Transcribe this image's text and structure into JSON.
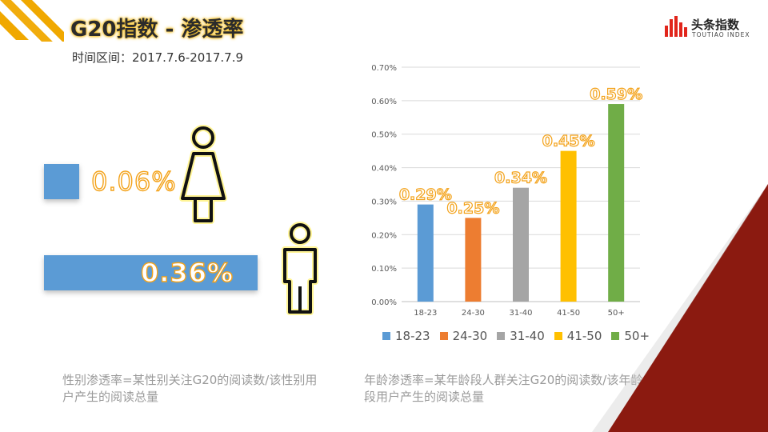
{
  "header": {
    "title": "G20指数 - 渗透率",
    "period": "时间区间：2017.7.6-2017.7.9"
  },
  "brand": {
    "name": "头条指数",
    "sub": "TOUTIAO INDEX",
    "icon": "bar-logo-icon"
  },
  "gender": {
    "female": {
      "value": "0.06%",
      "rate": 0.06,
      "icon": "female-icon"
    },
    "male": {
      "value": "0.36%",
      "rate": 0.36,
      "icon": "male-icon"
    },
    "bar_color": "#5b9bd5",
    "note": "性别渗透率=某性别关注G20的阅读数/该性别用户产生的阅读总量"
  },
  "age_note": "年龄渗透率=某年龄段人群关注G20的阅读数/该年龄段用户产生的阅读总量",
  "chart_data": {
    "type": "bar",
    "categories": [
      "18-23",
      "24-30",
      "31-40",
      "41-50",
      "50+"
    ],
    "values": [
      0.29,
      0.25,
      0.34,
      0.45,
      0.59
    ],
    "value_labels": [
      "0.29%",
      "0.25%",
      "0.34%",
      "0.45%",
      "0.59%"
    ],
    "colors": [
      "#5b9bd5",
      "#ed7d31",
      "#a5a5a5",
      "#ffc000",
      "#70ad47"
    ],
    "ylim": [
      0,
      0.7
    ],
    "yticks": [
      "0.00%",
      "0.10%",
      "0.20%",
      "0.30%",
      "0.40%",
      "0.50%",
      "0.60%",
      "0.70%"
    ],
    "grid": true,
    "legend": "bottom",
    "legend_entries": [
      "18-23",
      "24-30",
      "31-40",
      "41-50",
      "50+"
    ]
  },
  "decor": {
    "accent": "#f0a800",
    "dark_red": "#8b1a10"
  }
}
